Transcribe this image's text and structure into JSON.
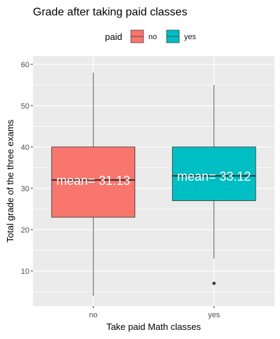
{
  "chart_data": {
    "type": "boxplot",
    "title": "Grade after taking paid classes",
    "xlabel": "Take paid Math classes",
    "ylabel": "Total grade of the three exams",
    "legend": {
      "title": "paid",
      "position": "top",
      "entries": [
        {
          "label": "no",
          "color": "#F8766D"
        },
        {
          "label": "yes",
          "color": "#00BFC4"
        }
      ]
    },
    "categories": [
      "no",
      "yes"
    ],
    "ylim": [
      1.5,
      62
    ],
    "yticks": [
      10,
      20,
      30,
      40,
      50,
      60
    ],
    "grid": true,
    "boxes": [
      {
        "category": "no",
        "color": "#F8766D",
        "whisker_low": 4,
        "q1": 23,
        "median": 32,
        "q3": 40,
        "whisker_high": 58,
        "outliers": [],
        "mean_label": "mean= 31.13"
      },
      {
        "category": "yes",
        "color": "#00BFC4",
        "whisker_low": 13,
        "q1": 27,
        "median": 33,
        "q3": 40,
        "whisker_high": 55,
        "outliers": [
          7
        ],
        "mean_label": "mean= 33.12"
      }
    ]
  }
}
